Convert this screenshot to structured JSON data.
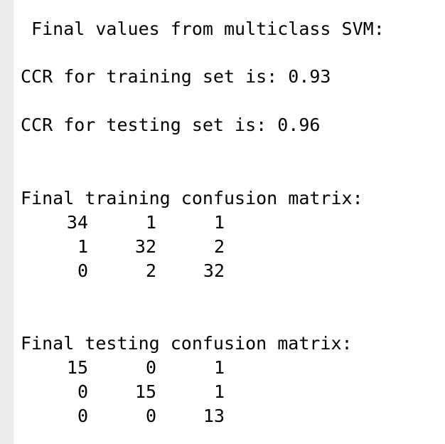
{
  "output": {
    "header": " Final values from multiclass SVM:",
    "ccr_training": "CCR for training set is: 0.93",
    "ccr_testing": "CCR for testing set is: 0.96",
    "training_matrix": {
      "title": "Final training confusion matrix:",
      "rows": [
        [
          "34",
          "1",
          "1"
        ],
        [
          "1",
          "32",
          "2"
        ],
        [
          "0",
          "2",
          "32"
        ]
      ]
    },
    "testing_matrix": {
      "title": "Final testing confusion matrix:",
      "rows": [
        [
          "15",
          "0",
          "1"
        ],
        [
          "0",
          "15",
          "1"
        ],
        [
          "0",
          "0",
          "13"
        ]
      ]
    }
  }
}
